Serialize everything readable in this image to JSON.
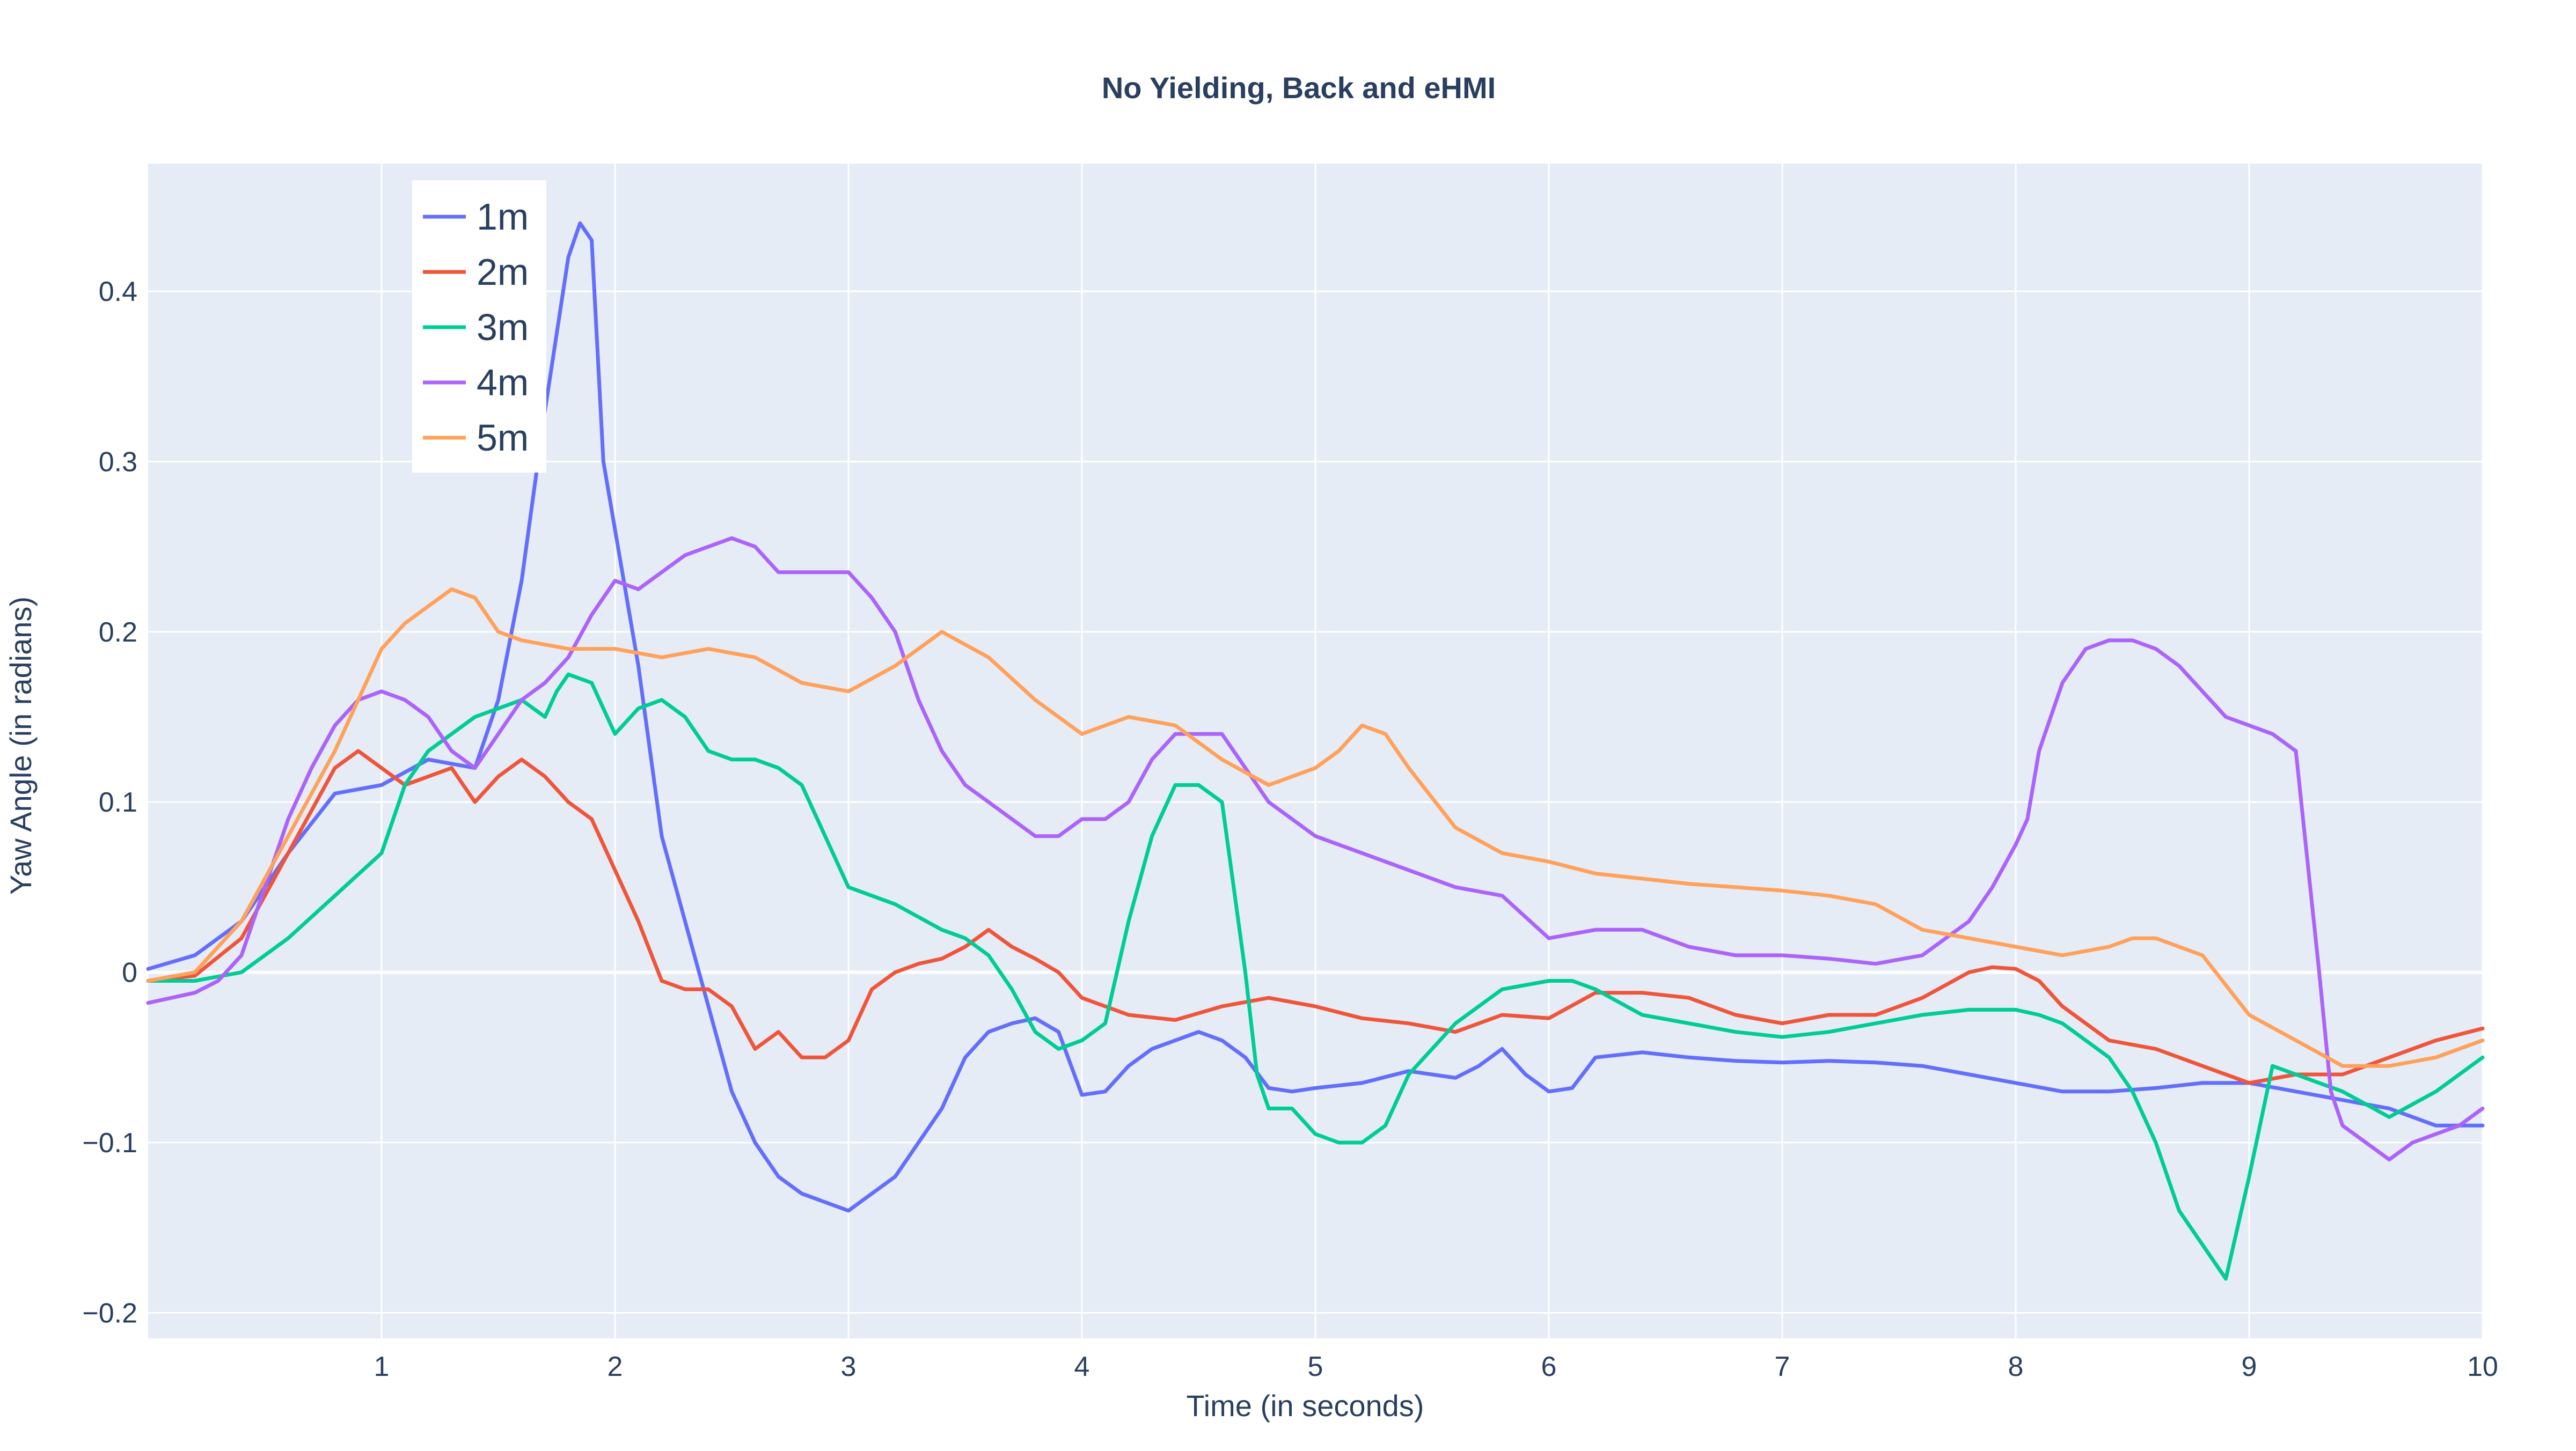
{
  "chart_data": {
    "type": "line",
    "title": "No Yielding, Back and eHMI",
    "xlabel": "Time (in seconds)",
    "ylabel": "Yaw Angle (in radians)",
    "xlim": [
      0,
      10
    ],
    "ylim": [
      -0.215,
      0.475
    ],
    "xticks": [
      1,
      2,
      3,
      4,
      5,
      6,
      7,
      8,
      9,
      10
    ],
    "xtick_labels": [
      "1",
      "2",
      "3",
      "4",
      "5",
      "6",
      "7",
      "8",
      "9",
      "10"
    ],
    "yticks": [
      -0.2,
      -0.1,
      0,
      0.1,
      0.2,
      0.3,
      0.4
    ],
    "ytick_labels": [
      "−0.2",
      "−0.1",
      "0",
      "0.1",
      "0.2",
      "0.3",
      "0.4"
    ],
    "grid": true,
    "legend_position": "top-left",
    "background_color": "#e5ecf6",
    "series": [
      {
        "name": "1m",
        "color": "#636efa",
        "x": [
          0,
          0.2,
          0.4,
          0.6,
          0.8,
          1.0,
          1.2,
          1.4,
          1.5,
          1.6,
          1.7,
          1.8,
          1.85,
          1.9,
          1.95,
          2.0,
          2.1,
          2.2,
          2.3,
          2.4,
          2.5,
          2.6,
          2.7,
          2.8,
          2.9,
          3.0,
          3.1,
          3.2,
          3.3,
          3.4,
          3.5,
          3.6,
          3.7,
          3.8,
          3.9,
          4.0,
          4.1,
          4.2,
          4.3,
          4.4,
          4.5,
          4.6,
          4.7,
          4.8,
          4.9,
          5.0,
          5.2,
          5.4,
          5.6,
          5.7,
          5.8,
          5.9,
          6.0,
          6.1,
          6.2,
          6.4,
          6.6,
          6.8,
          7.0,
          7.2,
          7.4,
          7.6,
          7.8,
          8.0,
          8.2,
          8.4,
          8.6,
          8.8,
          9.0,
          9.2,
          9.4,
          9.6,
          9.8,
          10.0
        ],
        "y": [
          0.002,
          0.01,
          0.03,
          0.07,
          0.105,
          0.11,
          0.125,
          0.12,
          0.16,
          0.23,
          0.33,
          0.42,
          0.44,
          0.43,
          0.3,
          0.26,
          0.18,
          0.08,
          0.03,
          -0.02,
          -0.07,
          -0.1,
          -0.12,
          -0.13,
          -0.135,
          -0.14,
          -0.13,
          -0.12,
          -0.1,
          -0.08,
          -0.05,
          -0.035,
          -0.03,
          -0.027,
          -0.035,
          -0.072,
          -0.07,
          -0.055,
          -0.045,
          -0.04,
          -0.035,
          -0.04,
          -0.05,
          -0.068,
          -0.07,
          -0.068,
          -0.065,
          -0.058,
          -0.062,
          -0.055,
          -0.045,
          -0.06,
          -0.07,
          -0.068,
          -0.05,
          -0.047,
          -0.05,
          -0.052,
          -0.053,
          -0.052,
          -0.053,
          -0.055,
          -0.06,
          -0.065,
          -0.07,
          -0.07,
          -0.068,
          -0.065,
          -0.065,
          -0.07,
          -0.075,
          -0.08,
          -0.09,
          -0.09
        ]
      },
      {
        "name": "2m",
        "color": "#ef553b",
        "x": [
          0,
          0.2,
          0.4,
          0.6,
          0.8,
          0.9,
          1.0,
          1.1,
          1.2,
          1.3,
          1.4,
          1.5,
          1.6,
          1.7,
          1.8,
          1.9,
          2.0,
          2.1,
          2.2,
          2.3,
          2.4,
          2.5,
          2.6,
          2.7,
          2.8,
          2.9,
          3.0,
          3.1,
          3.2,
          3.3,
          3.4,
          3.5,
          3.6,
          3.7,
          3.8,
          3.9,
          4.0,
          4.2,
          4.4,
          4.6,
          4.8,
          5.0,
          5.2,
          5.4,
          5.6,
          5.8,
          6.0,
          6.2,
          6.4,
          6.6,
          6.8,
          7.0,
          7.2,
          7.4,
          7.6,
          7.8,
          7.9,
          8.0,
          8.1,
          8.2,
          8.4,
          8.6,
          8.8,
          9.0,
          9.2,
          9.4,
          9.6,
          9.8,
          10.0
        ],
        "y": [
          -0.005,
          -0.002,
          0.02,
          0.07,
          0.12,
          0.13,
          0.12,
          0.11,
          0.115,
          0.12,
          0.1,
          0.115,
          0.125,
          0.115,
          0.1,
          0.09,
          0.06,
          0.03,
          -0.005,
          -0.01,
          -0.01,
          -0.02,
          -0.045,
          -0.035,
          -0.05,
          -0.05,
          -0.04,
          -0.01,
          0.0,
          0.005,
          0.008,
          0.015,
          0.025,
          0.015,
          0.008,
          0.0,
          -0.015,
          -0.025,
          -0.028,
          -0.02,
          -0.015,
          -0.02,
          -0.027,
          -0.03,
          -0.035,
          -0.025,
          -0.027,
          -0.012,
          -0.012,
          -0.015,
          -0.025,
          -0.03,
          -0.025,
          -0.025,
          -0.015,
          0.0,
          0.003,
          0.002,
          -0.005,
          -0.02,
          -0.04,
          -0.045,
          -0.055,
          -0.065,
          -0.06,
          -0.06,
          -0.05,
          -0.04,
          -0.033
        ]
      },
      {
        "name": "3m",
        "color": "#00cc96",
        "x": [
          0,
          0.2,
          0.4,
          0.6,
          0.8,
          1.0,
          1.1,
          1.2,
          1.3,
          1.4,
          1.5,
          1.6,
          1.7,
          1.75,
          1.8,
          1.9,
          2.0,
          2.1,
          2.2,
          2.3,
          2.4,
          2.5,
          2.6,
          2.7,
          2.8,
          2.9,
          3.0,
          3.2,
          3.4,
          3.5,
          3.6,
          3.7,
          3.8,
          3.9,
          4.0,
          4.1,
          4.2,
          4.3,
          4.4,
          4.5,
          4.6,
          4.65,
          4.7,
          4.75,
          4.8,
          4.9,
          5.0,
          5.1,
          5.2,
          5.3,
          5.4,
          5.6,
          5.8,
          6.0,
          6.1,
          6.2,
          6.4,
          6.6,
          6.8,
          7.0,
          7.2,
          7.4,
          7.6,
          7.8,
          8.0,
          8.1,
          8.2,
          8.3,
          8.4,
          8.5,
          8.6,
          8.7,
          8.8,
          8.9,
          9.0,
          9.1,
          9.2,
          9.4,
          9.6,
          9.8,
          10.0
        ],
        "y": [
          -0.005,
          -0.005,
          0.0,
          0.02,
          0.045,
          0.07,
          0.11,
          0.13,
          0.14,
          0.15,
          0.155,
          0.16,
          0.15,
          0.165,
          0.175,
          0.17,
          0.14,
          0.155,
          0.16,
          0.15,
          0.13,
          0.125,
          0.125,
          0.12,
          0.11,
          0.08,
          0.05,
          0.04,
          0.025,
          0.02,
          0.01,
          -0.01,
          -0.035,
          -0.045,
          -0.04,
          -0.03,
          0.03,
          0.08,
          0.11,
          0.11,
          0.1,
          0.05,
          0.0,
          -0.06,
          -0.08,
          -0.08,
          -0.095,
          -0.1,
          -0.1,
          -0.09,
          -0.06,
          -0.03,
          -0.01,
          -0.005,
          -0.005,
          -0.01,
          -0.025,
          -0.03,
          -0.035,
          -0.038,
          -0.035,
          -0.03,
          -0.025,
          -0.022,
          -0.022,
          -0.025,
          -0.03,
          -0.04,
          -0.05,
          -0.07,
          -0.1,
          -0.14,
          -0.16,
          -0.18,
          -0.12,
          -0.055,
          -0.06,
          -0.07,
          -0.085,
          -0.07,
          -0.05
        ]
      },
      {
        "name": "4m",
        "color": "#ab63fa",
        "x": [
          0,
          0.2,
          0.3,
          0.4,
          0.5,
          0.6,
          0.7,
          0.8,
          0.9,
          1.0,
          1.1,
          1.2,
          1.3,
          1.4,
          1.5,
          1.6,
          1.7,
          1.8,
          1.9,
          2.0,
          2.1,
          2.2,
          2.3,
          2.4,
          2.5,
          2.6,
          2.7,
          2.8,
          2.9,
          3.0,
          3.1,
          3.2,
          3.3,
          3.4,
          3.5,
          3.6,
          3.7,
          3.8,
          3.9,
          4.0,
          4.1,
          4.2,
          4.3,
          4.4,
          4.5,
          4.6,
          4.7,
          4.8,
          5.0,
          5.2,
          5.4,
          5.6,
          5.8,
          6.0,
          6.2,
          6.4,
          6.6,
          6.8,
          7.0,
          7.2,
          7.4,
          7.6,
          7.8,
          7.9,
          8.0,
          8.05,
          8.1,
          8.2,
          8.3,
          8.4,
          8.5,
          8.6,
          8.7,
          8.8,
          8.9,
          9.0,
          9.1,
          9.2,
          9.3,
          9.35,
          9.4,
          9.5,
          9.6,
          9.7,
          9.8,
          9.9,
          10.0
        ],
        "y": [
          -0.018,
          -0.012,
          -0.005,
          0.01,
          0.05,
          0.09,
          0.12,
          0.145,
          0.16,
          0.165,
          0.16,
          0.15,
          0.13,
          0.12,
          0.14,
          0.16,
          0.17,
          0.185,
          0.21,
          0.23,
          0.225,
          0.235,
          0.245,
          0.25,
          0.255,
          0.25,
          0.235,
          0.235,
          0.235,
          0.235,
          0.22,
          0.2,
          0.16,
          0.13,
          0.11,
          0.1,
          0.09,
          0.08,
          0.08,
          0.09,
          0.09,
          0.1,
          0.125,
          0.14,
          0.14,
          0.14,
          0.12,
          0.1,
          0.08,
          0.07,
          0.06,
          0.05,
          0.045,
          0.02,
          0.025,
          0.025,
          0.015,
          0.01,
          0.01,
          0.008,
          0.005,
          0.01,
          0.03,
          0.05,
          0.075,
          0.09,
          0.13,
          0.17,
          0.19,
          0.195,
          0.195,
          0.19,
          0.18,
          0.165,
          0.15,
          0.145,
          0.14,
          0.13,
          0.0,
          -0.07,
          -0.09,
          -0.1,
          -0.11,
          -0.1,
          -0.095,
          -0.09,
          -0.08
        ]
      },
      {
        "name": "5m",
        "color": "#ffa15a",
        "x": [
          0,
          0.2,
          0.4,
          0.6,
          0.8,
          0.9,
          1.0,
          1.1,
          1.2,
          1.3,
          1.4,
          1.5,
          1.6,
          1.8,
          2.0,
          2.2,
          2.4,
          2.6,
          2.8,
          3.0,
          3.2,
          3.3,
          3.4,
          3.6,
          3.8,
          4.0,
          4.2,
          4.4,
          4.6,
          4.8,
          5.0,
          5.1,
          5.2,
          5.3,
          5.4,
          5.6,
          5.8,
          6.0,
          6.2,
          6.4,
          6.6,
          6.8,
          7.0,
          7.2,
          7.4,
          7.6,
          7.8,
          8.0,
          8.2,
          8.4,
          8.5,
          8.6,
          8.8,
          9.0,
          9.2,
          9.4,
          9.6,
          9.8,
          10.0
        ],
        "y": [
          -0.005,
          0.0,
          0.03,
          0.08,
          0.13,
          0.16,
          0.19,
          0.205,
          0.215,
          0.225,
          0.22,
          0.2,
          0.195,
          0.19,
          0.19,
          0.185,
          0.19,
          0.185,
          0.17,
          0.165,
          0.18,
          0.19,
          0.2,
          0.185,
          0.16,
          0.14,
          0.15,
          0.145,
          0.125,
          0.11,
          0.12,
          0.13,
          0.145,
          0.14,
          0.12,
          0.085,
          0.07,
          0.065,
          0.058,
          0.055,
          0.052,
          0.05,
          0.048,
          0.045,
          0.04,
          0.025,
          0.02,
          0.015,
          0.01,
          0.015,
          0.02,
          0.02,
          0.01,
          -0.025,
          -0.04,
          -0.055,
          -0.055,
          -0.05,
          -0.04
        ]
      }
    ]
  }
}
